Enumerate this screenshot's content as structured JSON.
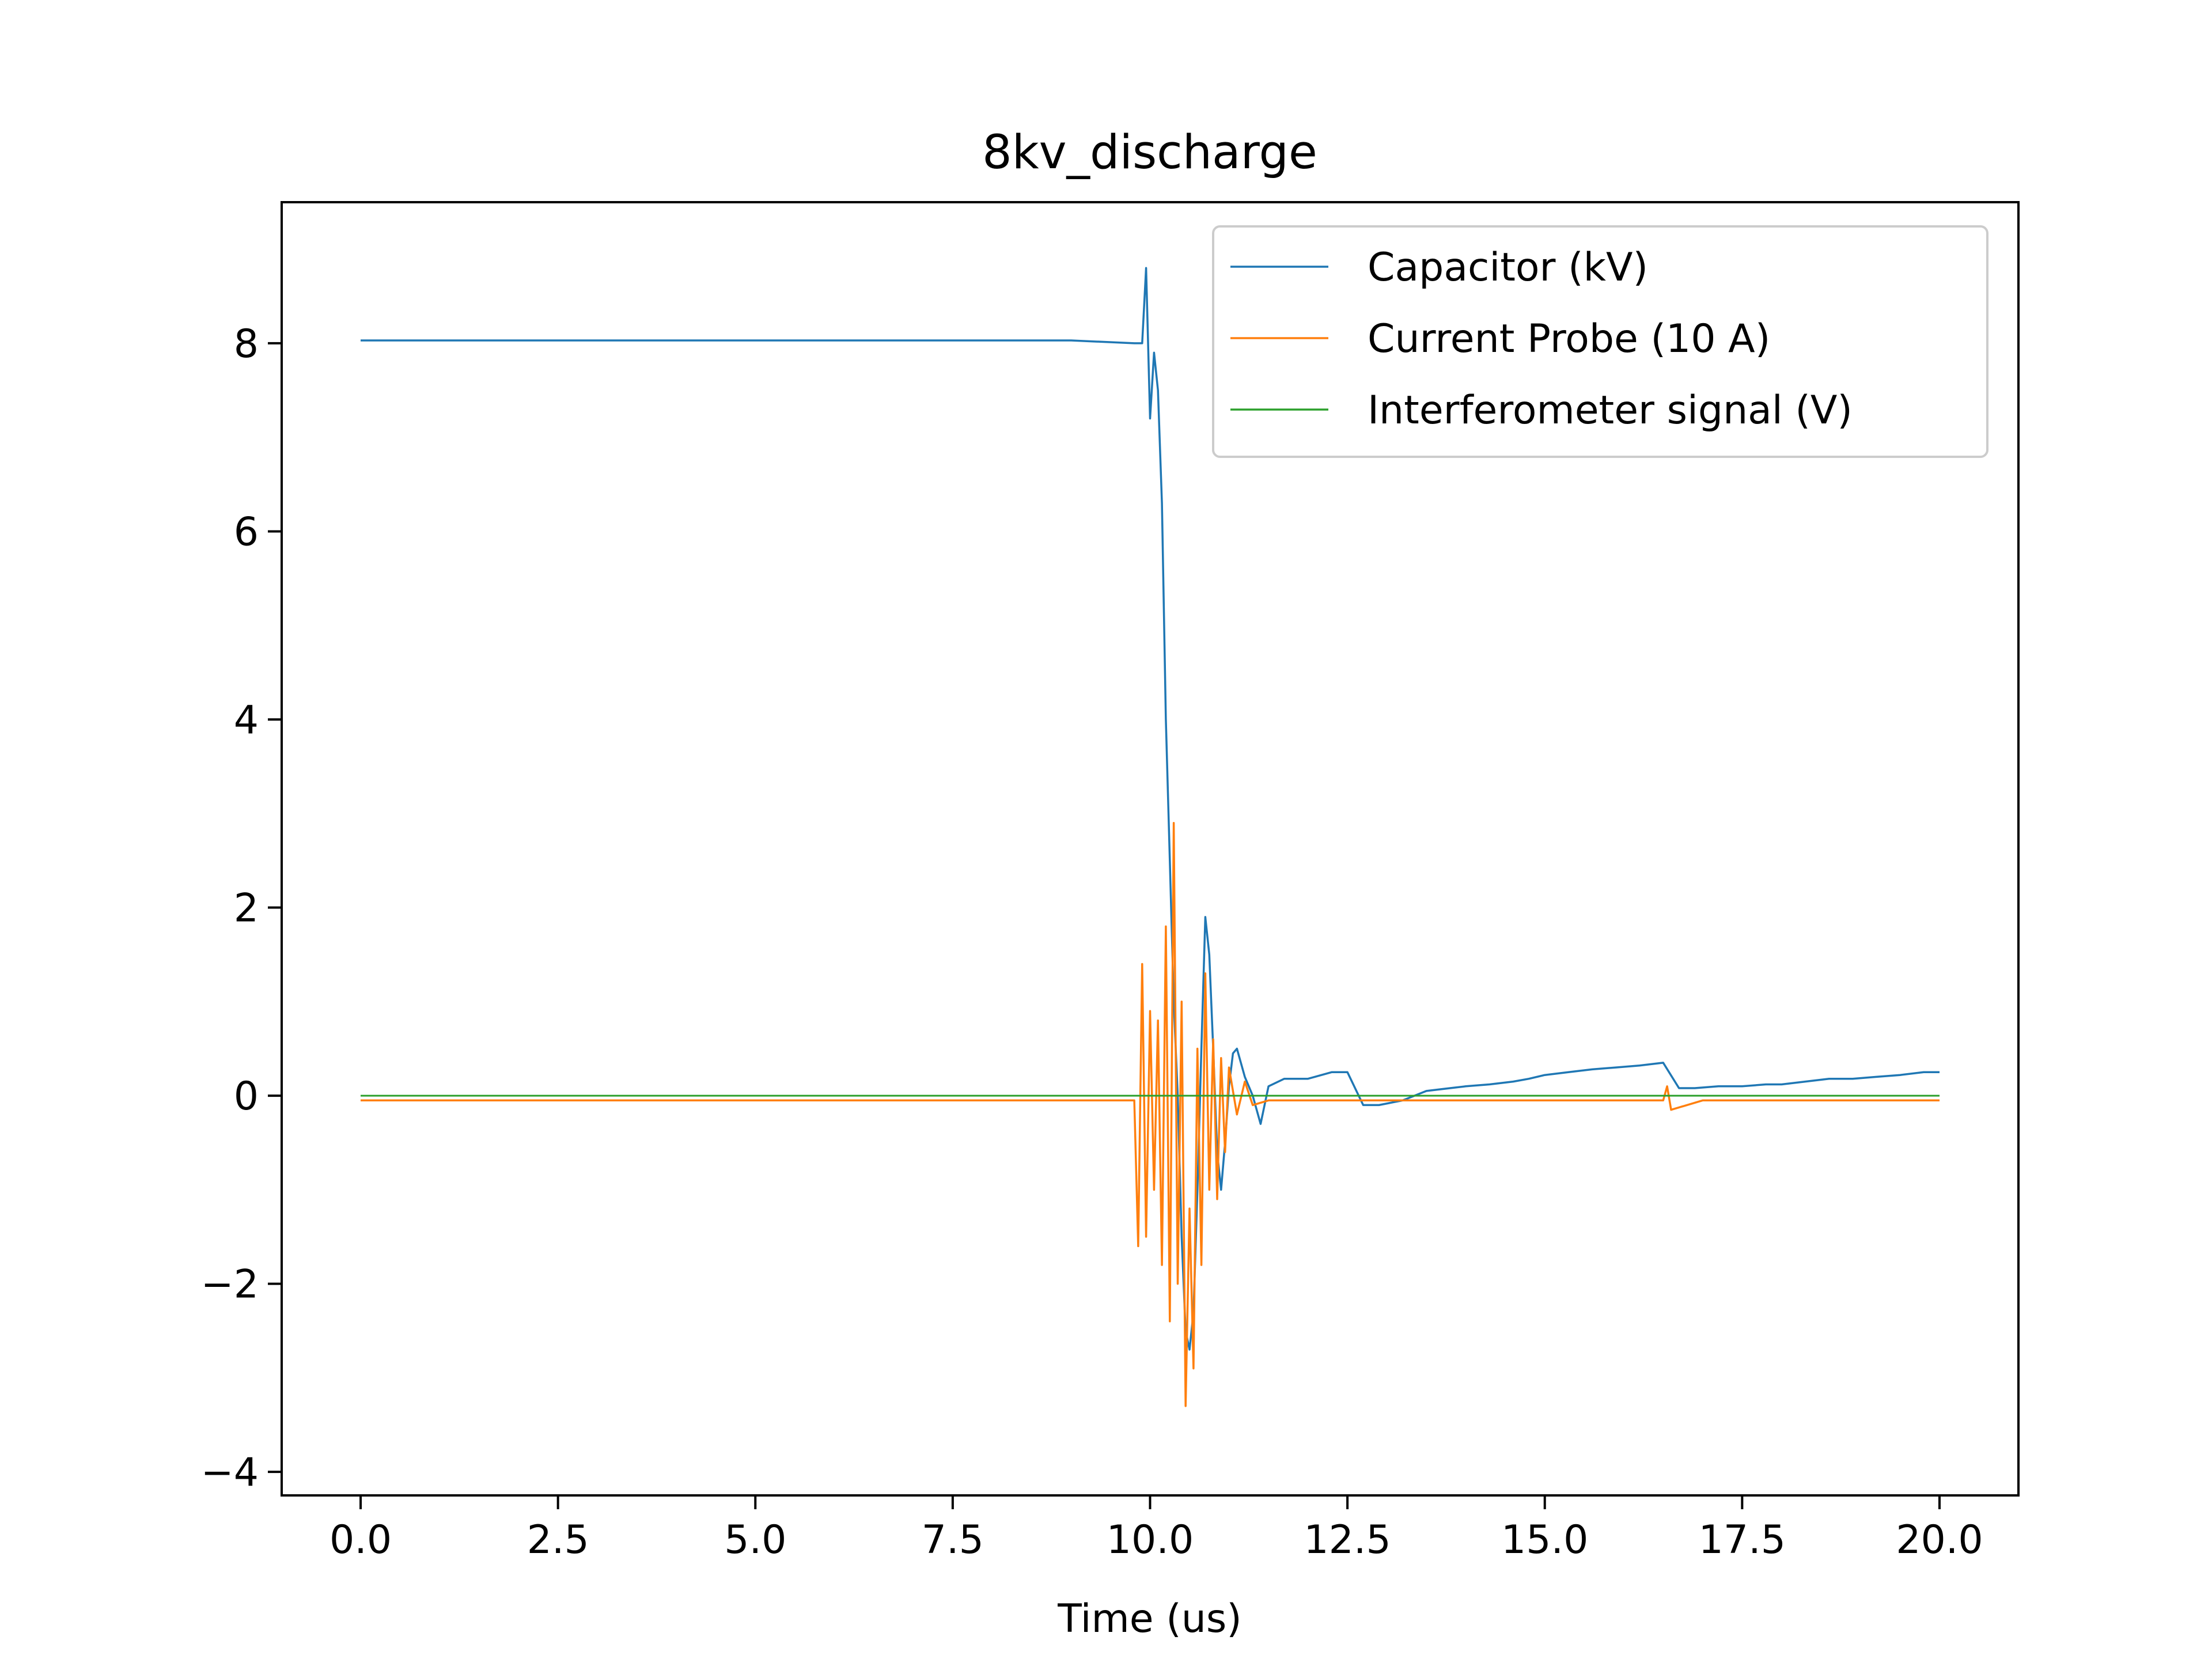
{
  "chart_data": {
    "type": "line",
    "title": "8kv_discharge",
    "xlabel": "Time (us)",
    "ylabel": "",
    "xlim": [
      -1.0,
      21.0
    ],
    "ylim": [
      -4.25,
      9.5
    ],
    "x_ticks": [
      {
        "value": 0.0,
        "label": "0.0"
      },
      {
        "value": 2.5,
        "label": "2.5"
      },
      {
        "value": 5.0,
        "label": "5.0"
      },
      {
        "value": 7.5,
        "label": "7.5"
      },
      {
        "value": 10.0,
        "label": "10.0"
      },
      {
        "value": 12.5,
        "label": "12.5"
      },
      {
        "value": 15.0,
        "label": "15.0"
      },
      {
        "value": 17.5,
        "label": "17.5"
      },
      {
        "value": 20.0,
        "label": "20.0"
      }
    ],
    "y_ticks": [
      {
        "value": -4,
        "label": "−4"
      },
      {
        "value": -2,
        "label": "−2"
      },
      {
        "value": 0,
        "label": "0"
      },
      {
        "value": 2,
        "label": "2"
      },
      {
        "value": 4,
        "label": "4"
      },
      {
        "value": 6,
        "label": "6"
      },
      {
        "value": 8,
        "label": "8"
      }
    ],
    "grid": false,
    "legend_position": "top-right",
    "series": [
      {
        "name": "Capacitor (kV)",
        "color": "#1f77b4",
        "x": [
          0.0,
          1.0,
          2.0,
          3.0,
          4.0,
          5.0,
          6.0,
          7.0,
          8.0,
          9.0,
          9.8,
          9.9,
          9.95,
          10.0,
          10.05,
          10.1,
          10.15,
          10.2,
          10.25,
          10.3,
          10.35,
          10.4,
          10.45,
          10.5,
          10.55,
          10.6,
          10.65,
          10.7,
          10.75,
          10.8,
          10.85,
          10.9,
          10.95,
          11.0,
          11.05,
          11.1,
          11.2,
          11.3,
          11.4,
          11.5,
          11.7,
          12.0,
          12.3,
          12.5,
          12.7,
          12.9,
          13.2,
          13.5,
          13.8,
          14.0,
          14.3,
          14.6,
          14.8,
          15.0,
          15.3,
          15.6,
          15.9,
          16.2,
          16.5,
          16.7,
          16.9,
          17.2,
          17.5,
          17.8,
          18.0,
          18.3,
          18.6,
          18.9,
          19.2,
          19.5,
          19.8,
          20.0
        ],
        "y": [
          8.03,
          8.03,
          8.03,
          8.03,
          8.03,
          8.03,
          8.03,
          8.03,
          8.03,
          8.03,
          8.0,
          8.0,
          8.8,
          7.2,
          7.9,
          7.5,
          6.3,
          4.0,
          2.5,
          1.0,
          0.0,
          -1.5,
          -2.5,
          -2.7,
          -2.3,
          -1.0,
          0.5,
          1.9,
          1.5,
          0.5,
          -0.6,
          -1.0,
          -0.5,
          0.1,
          0.45,
          0.5,
          0.2,
          0.0,
          -0.3,
          0.1,
          0.18,
          0.18,
          0.25,
          0.25,
          -0.1,
          -0.1,
          -0.05,
          0.05,
          0.08,
          0.1,
          0.12,
          0.15,
          0.18,
          0.22,
          0.25,
          0.28,
          0.3,
          0.32,
          0.35,
          0.08,
          0.08,
          0.1,
          0.1,
          0.12,
          0.12,
          0.15,
          0.18,
          0.18,
          0.2,
          0.22,
          0.25,
          0.25
        ]
      },
      {
        "name": "Current Probe (10 A)",
        "color": "#ff7f0e",
        "x": [
          0.0,
          2.0,
          4.0,
          6.0,
          8.0,
          9.8,
          9.85,
          9.9,
          9.95,
          10.0,
          10.05,
          10.1,
          10.15,
          10.2,
          10.25,
          10.3,
          10.35,
          10.4,
          10.45,
          10.5,
          10.55,
          10.6,
          10.65,
          10.7,
          10.75,
          10.8,
          10.85,
          10.9,
          10.95,
          11.0,
          11.1,
          11.2,
          11.3,
          11.5,
          12.0,
          13.0,
          14.0,
          15.0,
          16.0,
          16.5,
          16.55,
          16.6,
          17.0,
          18.0,
          19.0,
          20.0
        ],
        "y": [
          -0.05,
          -0.05,
          -0.05,
          -0.05,
          -0.05,
          -0.05,
          -1.6,
          1.4,
          -1.5,
          0.9,
          -1.0,
          0.8,
          -1.8,
          1.8,
          -2.4,
          2.9,
          -2.0,
          1.0,
          -3.3,
          -1.2,
          -2.9,
          0.5,
          -1.8,
          1.3,
          -1.0,
          0.6,
          -1.1,
          0.4,
          -0.6,
          0.3,
          -0.2,
          0.15,
          -0.1,
          -0.05,
          -0.05,
          -0.05,
          -0.05,
          -0.05,
          -0.05,
          -0.05,
          0.1,
          -0.15,
          -0.05,
          -0.05,
          -0.05,
          -0.05
        ]
      },
      {
        "name": "Interferometer signal (V)",
        "color": "#2ca02c",
        "x": [
          0.0,
          20.0
        ],
        "y": [
          0.0,
          0.0
        ]
      }
    ]
  }
}
